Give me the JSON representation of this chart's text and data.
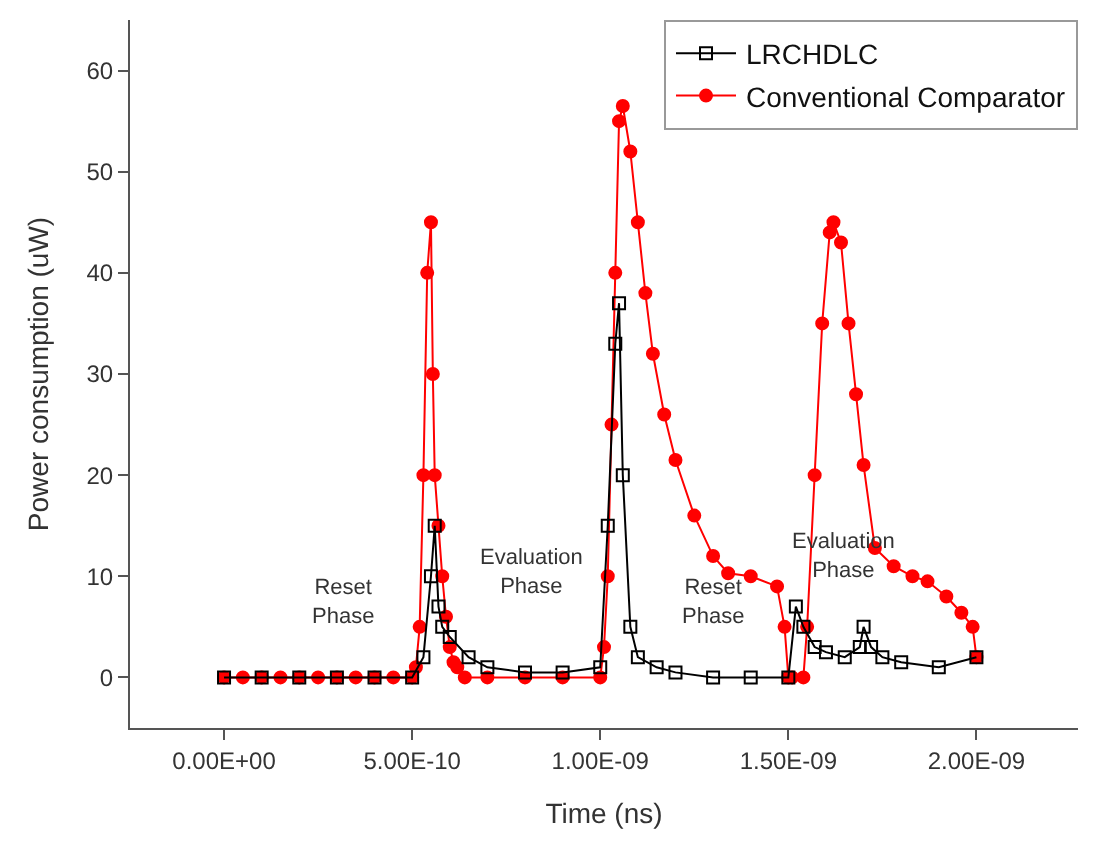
{
  "chart_data": {
    "type": "line",
    "xlabel": "Time (ns)",
    "ylabel": "Power consumption (uW)",
    "xlim": [
      -2.5e-10,
      2.27e-09
    ],
    "ylim": [
      -5,
      65
    ],
    "xticks": [
      {
        "value": 0,
        "label": "0.00E+00"
      },
      {
        "value": 5e-10,
        "label": "5.00E-10"
      },
      {
        "value": 1e-09,
        "label": "1.00E-09"
      },
      {
        "value": 1.5e-09,
        "label": "1.50E-09"
      },
      {
        "value": 2e-09,
        "label": "2.00E-09"
      }
    ],
    "yticks": [
      0,
      10,
      20,
      30,
      40,
      50,
      60
    ],
    "grid": false,
    "legend": "top right",
    "series": [
      {
        "name": "LRCHDLC",
        "color": "#000000",
        "marker": "square",
        "x": [
          0,
          1e-10,
          2e-10,
          3e-10,
          4e-10,
          5e-10,
          5.3e-10,
          5.5e-10,
          5.6e-10,
          5.7e-10,
          5.8e-10,
          6e-10,
          6.5e-10,
          7e-10,
          8e-10,
          9e-10,
          1e-09,
          1.02e-09,
          1.04e-09,
          1.05e-09,
          1.06e-09,
          1.08e-09,
          1.1e-09,
          1.15e-09,
          1.2e-09,
          1.3e-09,
          1.4e-09,
          1.5e-09,
          1.52e-09,
          1.54e-09,
          1.57e-09,
          1.6e-09,
          1.65e-09,
          1.69e-09,
          1.7e-09,
          1.72e-09,
          1.75e-09,
          1.8e-09,
          1.9e-09,
          2e-09
        ],
        "values": [
          0,
          0,
          0,
          0,
          0,
          0,
          2,
          10,
          15,
          7,
          5,
          4,
          2,
          1,
          0.5,
          0.5,
          1,
          15,
          33,
          37,
          20,
          5,
          2,
          1,
          0.5,
          0,
          0,
          0,
          7,
          5,
          3,
          2.5,
          2,
          3,
          5,
          3,
          2,
          1.5,
          1,
          2
        ]
      },
      {
        "name": "Conventional Comparator",
        "color": "#ff0000",
        "marker": "circle",
        "x": [
          0,
          5e-11,
          1e-10,
          1.5e-10,
          2e-10,
          2.5e-10,
          3e-10,
          3.5e-10,
          4e-10,
          4.5e-10,
          5e-10,
          5.1e-10,
          5.2e-10,
          5.3e-10,
          5.4e-10,
          5.5e-10,
          5.55e-10,
          5.6e-10,
          5.7e-10,
          5.8e-10,
          5.9e-10,
          6e-10,
          6.1e-10,
          6.2e-10,
          6.4e-10,
          7e-10,
          8e-10,
          9e-10,
          1e-09,
          1.01e-09,
          1.02e-09,
          1.03e-09,
          1.04e-09,
          1.05e-09,
          1.06e-09,
          1.08e-09,
          1.1e-09,
          1.12e-09,
          1.14e-09,
          1.17e-09,
          1.2e-09,
          1.25e-09,
          1.3e-09,
          1.34e-09,
          1.4e-09,
          1.47e-09,
          1.49e-09,
          1.5e-09,
          1.51e-09,
          1.54e-09,
          1.55e-09,
          1.57e-09,
          1.59e-09,
          1.61e-09,
          1.62e-09,
          1.64e-09,
          1.66e-09,
          1.68e-09,
          1.7e-09,
          1.73e-09,
          1.78e-09,
          1.83e-09,
          1.87e-09,
          1.92e-09,
          1.96e-09,
          1.99e-09,
          2e-09
        ],
        "values": [
          0,
          0,
          0,
          0,
          0,
          0,
          0,
          0,
          0,
          0,
          0,
          1,
          5,
          20,
          40,
          45,
          30,
          20,
          15,
          10,
          6,
          3,
          1.5,
          1,
          0,
          0,
          0,
          0,
          0,
          3,
          10,
          25,
          40,
          55,
          56.5,
          52,
          45,
          38,
          32,
          26,
          21.5,
          16,
          12,
          10.3,
          10,
          9,
          5,
          0,
          0,
          0,
          5,
          20,
          35,
          44,
          45,
          43,
          35,
          28,
          21,
          12.8,
          11,
          10,
          9.5,
          8,
          6.4,
          5,
          2
        ]
      }
    ],
    "annotations": [
      "Reset\nPhase",
      "Evaluation\nPhase",
      "Reset\nPhase",
      "Evaluation\nPhase"
    ]
  }
}
